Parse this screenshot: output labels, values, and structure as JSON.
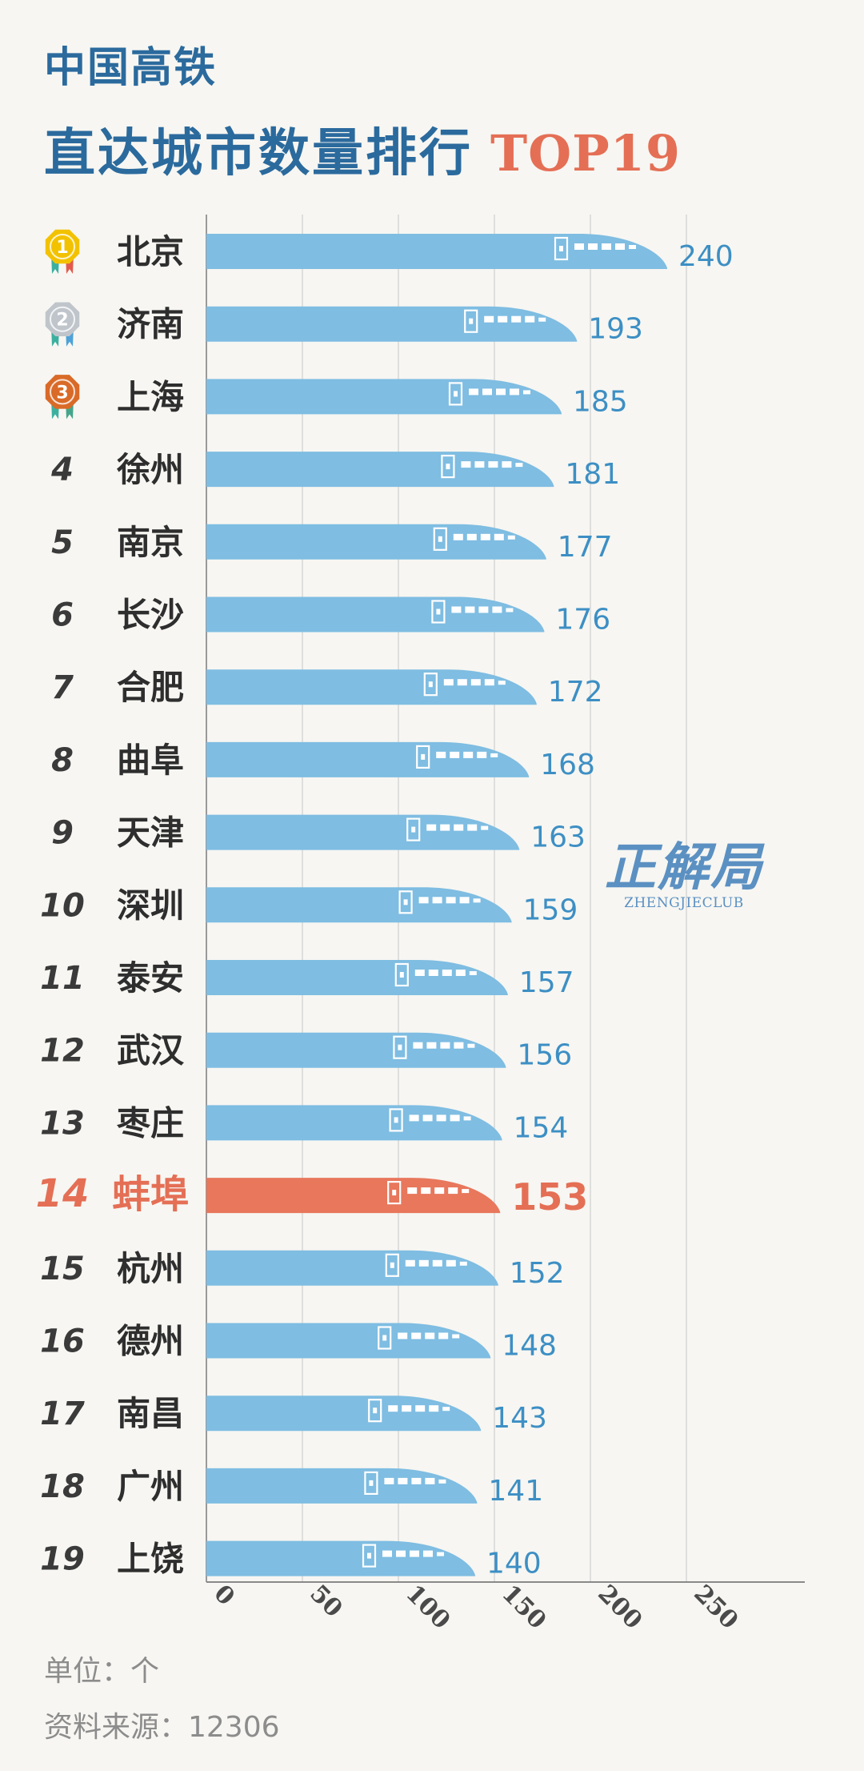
{
  "header": {
    "subtitle": "中国高铁",
    "title": "直达城市数量排行",
    "title_accent": "TOP19"
  },
  "watermark": {
    "text": "正解局",
    "subtext": "ZHENGJIECLUB"
  },
  "footer": {
    "unit": "单位：个",
    "source": "资料来源：12306"
  },
  "colors": {
    "title": "#2b6a9d",
    "accent": "#e46f55",
    "bar": "#7fbde2",
    "highlight_bar": "#e8775c",
    "value_label": "#3d8fc4",
    "rank_text": "#3a3a3a",
    "grid": "#d6d6d6",
    "gold_medal": "#f2c200",
    "silver_medal": "#bfc5cb",
    "bronze_medal": "#d96a28"
  },
  "chart_data": {
    "type": "bar",
    "orientation": "horizontal",
    "categories": [
      "北京",
      "济南",
      "上海",
      "徐州",
      "南京",
      "长沙",
      "合肥",
      "曲阜",
      "天津",
      "深圳",
      "泰安",
      "武汉",
      "枣庄",
      "蚌埠",
      "杭州",
      "德州",
      "南昌",
      "广州",
      "上饶"
    ],
    "ranks": [
      1,
      2,
      3,
      4,
      5,
      6,
      7,
      8,
      9,
      10,
      11,
      12,
      13,
      14,
      15,
      16,
      17,
      18,
      19
    ],
    "values": [
      240,
      193,
      185,
      181,
      177,
      176,
      172,
      168,
      163,
      159,
      157,
      156,
      154,
      153,
      152,
      148,
      143,
      141,
      140
    ],
    "highlight": "蚌埠",
    "medals": [
      "gold",
      "silver",
      "bronze"
    ],
    "x_ticks": [
      0,
      50,
      100,
      150,
      200,
      250
    ],
    "xlim": [
      0,
      310
    ],
    "grid": true,
    "bar_style": "high-speed train"
  }
}
